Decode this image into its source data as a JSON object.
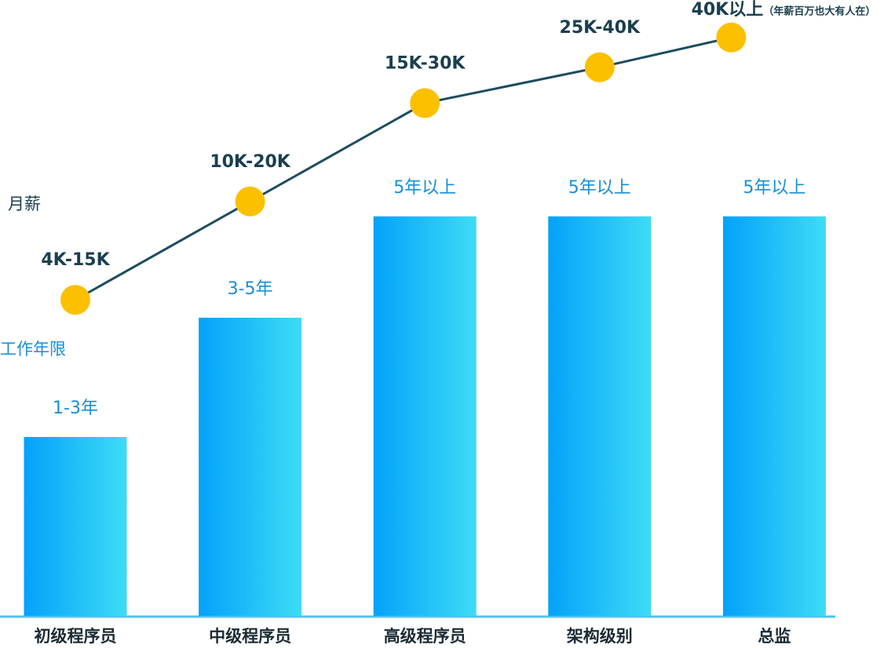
{
  "chart_data": {
    "type": "bar",
    "categories": [
      "初级程序员",
      "中级程序员",
      "高级程序员",
      "架构级别",
      "总监"
    ],
    "ylim": [
      0,
      100
    ],
    "series": [
      {
        "name": "工作年限",
        "type": "bar",
        "color": "#03a2fb",
        "color2": "#3ddcf5",
        "values": [
          30,
          50,
          67,
          67,
          67
        ],
        "value_labels": [
          "1-3年",
          "3-5年",
          "5年以上",
          "5年以上",
          "5年以上"
        ]
      },
      {
        "name": "月薪",
        "type": "line",
        "color": "#1d4d5e",
        "marker_color": "#fcc000",
        "values": [
          53,
          69.5,
          86,
          92,
          97
        ],
        "value_labels": [
          "4K-15K",
          "10K-20K",
          "15K-30K",
          "25K-40K",
          "40K以上"
        ]
      }
    ],
    "annotation": "（年薪百万也大有人在）"
  }
}
